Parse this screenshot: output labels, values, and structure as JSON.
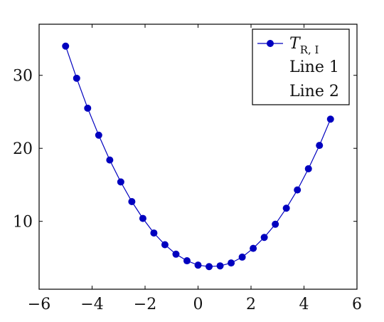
{
  "chart_data": {
    "type": "line",
    "title": "",
    "xlabel": "",
    "ylabel": "",
    "xlim": [
      -6,
      6
    ],
    "ylim": [
      0.7,
      37
    ],
    "grid": false,
    "legend_position": "top-right",
    "x_ticks": [
      -6,
      -4,
      -2,
      0,
      2,
      4,
      6
    ],
    "x_tick_labels": [
      "−6",
      "−4",
      "−2",
      "0",
      "2",
      "4",
      "6"
    ],
    "y_ticks": [
      10,
      20,
      30
    ],
    "y_tick_labels": [
      "10",
      "20",
      "30"
    ],
    "series": [
      {
        "name": "T_{R, I}",
        "name_main": "T",
        "name_sub": "R, I",
        "color": "#0000bf",
        "marker": "circle",
        "x": [
          -5.0,
          -4.583,
          -4.167,
          -3.75,
          -3.333,
          -2.917,
          -2.5,
          -2.083,
          -1.667,
          -1.25,
          -0.833,
          -0.417,
          0.0,
          0.417,
          0.833,
          1.25,
          1.667,
          2.083,
          2.5,
          2.917,
          3.333,
          3.75,
          4.167,
          4.583,
          5.0
        ],
        "y": [
          34.0,
          29.6,
          25.5,
          21.8,
          18.4,
          15.4,
          12.7,
          10.4,
          8.4,
          6.8,
          5.5,
          4.6,
          4.0,
          3.8,
          3.9,
          4.3,
          5.1,
          6.3,
          7.8,
          9.6,
          11.8,
          14.3,
          17.2,
          20.4,
          24.0
        ]
      },
      {
        "name": "Line 1",
        "color": "",
        "x": [],
        "y": []
      },
      {
        "name": "Line 2",
        "color": "",
        "x": [],
        "y": []
      }
    ]
  }
}
